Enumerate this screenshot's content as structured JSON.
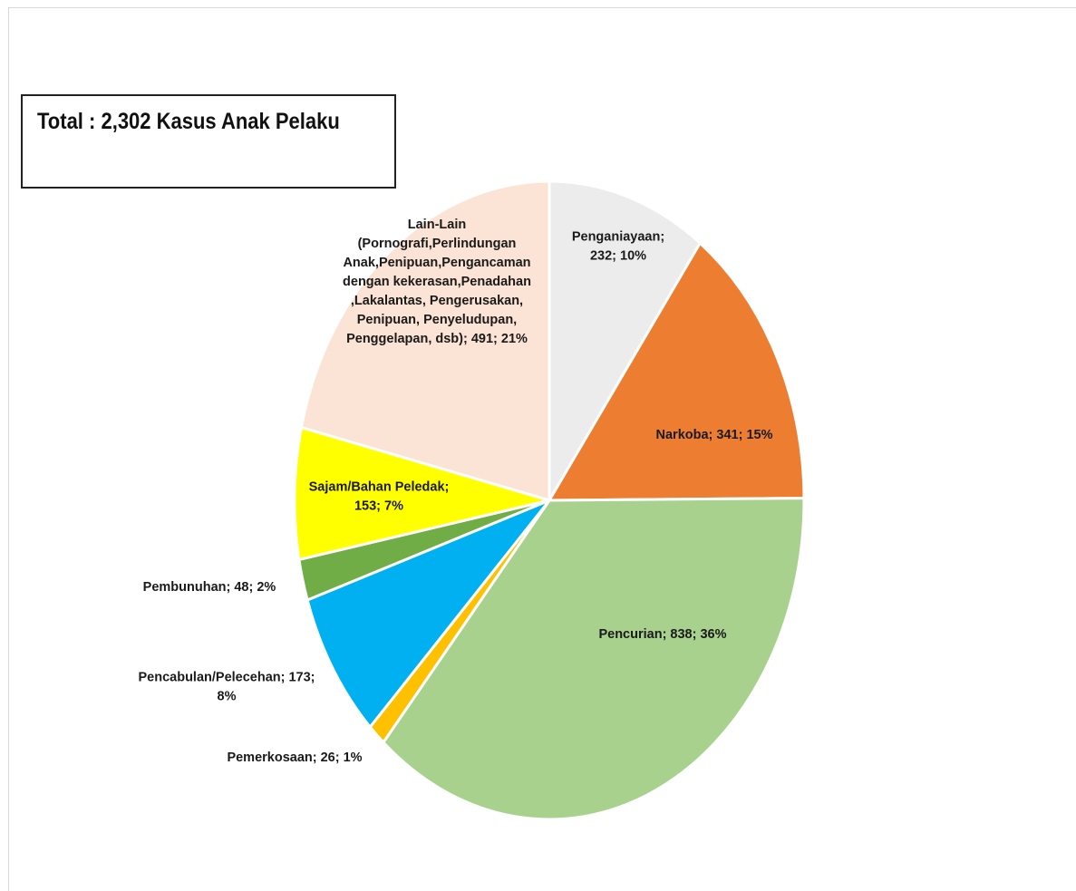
{
  "total_label": "Total : 2,302 Kasus Anak Pelaku",
  "chart_data": {
    "type": "pie",
    "title": "",
    "start": "12 o'clock, clockwise",
    "slices": [
      {
        "label": "Penganiayaan",
        "value": 232,
        "percent": "10%",
        "color": "#ececec",
        "text_lines": [
          "Penganiayaan;",
          "232; 10%"
        ]
      },
      {
        "label": "Narkoba",
        "value": 341,
        "percent": "15%",
        "color": "#ed7d31",
        "text_lines": [
          "Narkoba; 341; 15%"
        ]
      },
      {
        "label": "Pencurian",
        "value": 838,
        "percent": "36%",
        "color": "#a9d18e",
        "text_lines": [
          "Pencurian; 838; 36%"
        ]
      },
      {
        "label": "Pemerkosaan",
        "value": 26,
        "percent": "1%",
        "color": "#ffc000",
        "text_lines": [
          "Pemerkosaan; 26; 1%"
        ]
      },
      {
        "label": "Pencabulan/Pelecehan",
        "value": 173,
        "percent": "8%",
        "color": "#00b0f0",
        "text_lines": [
          "Pencabulan/Pelecehan; 173;",
          "8%"
        ]
      },
      {
        "label": "Pembunuhan",
        "value": 48,
        "percent": "2%",
        "color": "#70ad47",
        "text_lines": [
          "Pembunuhan; 48; 2%"
        ]
      },
      {
        "label": "Sajam/Bahan Peledak",
        "value": 153,
        "percent": "7%",
        "color": "#ffff00",
        "text_lines": [
          "Sajam/Bahan Peledak;",
          "153; 7%"
        ]
      },
      {
        "label": "Lain-Lain (Pornografi,Perlindungan Anak,Penipuan,Pengancaman dengan kekerasan,Penadahan ,Lakalantas, Pengerusakan, Penipuan, Penyeludupan, Penggelapan, dsb)",
        "value": 491,
        "percent": "21%",
        "color": "#fbe4d5",
        "text_lines": [
          "Lain-Lain",
          "(Pornografi,Perlindungan",
          "Anak,Penipuan,Pengancaman",
          "dengan kekerasan,Penadahan",
          ",Lakalantas, Pengerusakan,",
          "Penipuan, Penyeludupan,",
          "Penggelapan, dsb); 491; 21%"
        ]
      }
    ]
  }
}
